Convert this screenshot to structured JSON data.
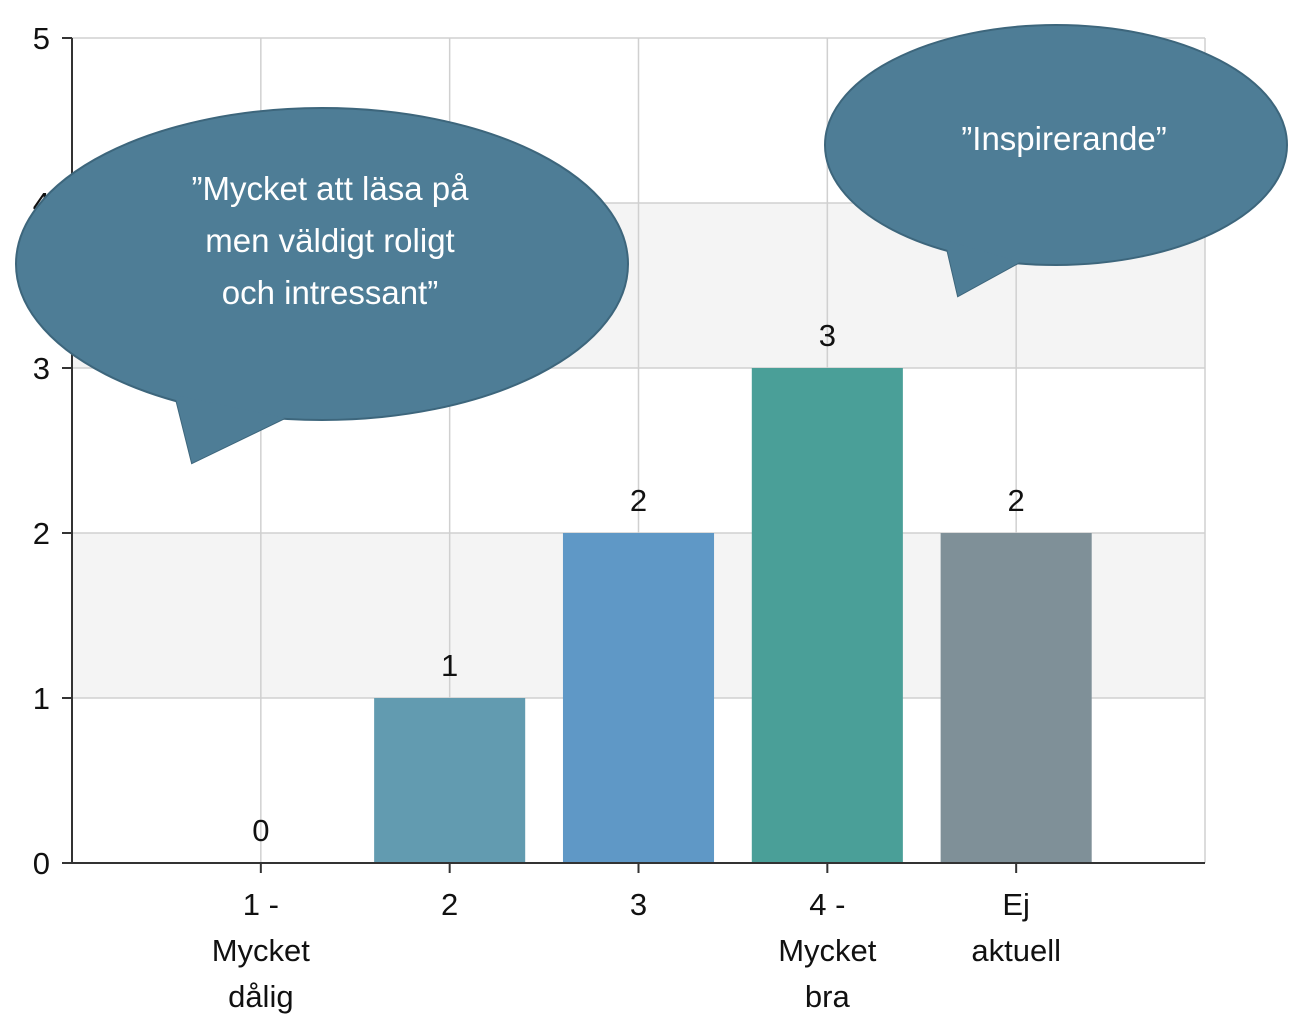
{
  "chart_data": {
    "type": "bar",
    "categories": [
      "1 - Mycket dålig",
      "2",
      "3",
      "4 - Mycket bra",
      "Ej aktuell"
    ],
    "values": [
      0,
      1,
      2,
      3,
      2
    ],
    "colors": [
      "#629bb0",
      "#629bb0",
      "#5f98c6",
      "#4a9f98",
      "#7f9098"
    ],
    "ylim": [
      0,
      5
    ],
    "yticks": [
      0,
      1,
      2,
      3,
      4,
      5
    ],
    "grid": true,
    "annotations": [
      {
        "lines": [
          "”Mycket att läsa på",
          "men väldigt roligt",
          "och intressant”"
        ]
      },
      {
        "lines": [
          "”Inspirerande”"
        ]
      }
    ]
  }
}
